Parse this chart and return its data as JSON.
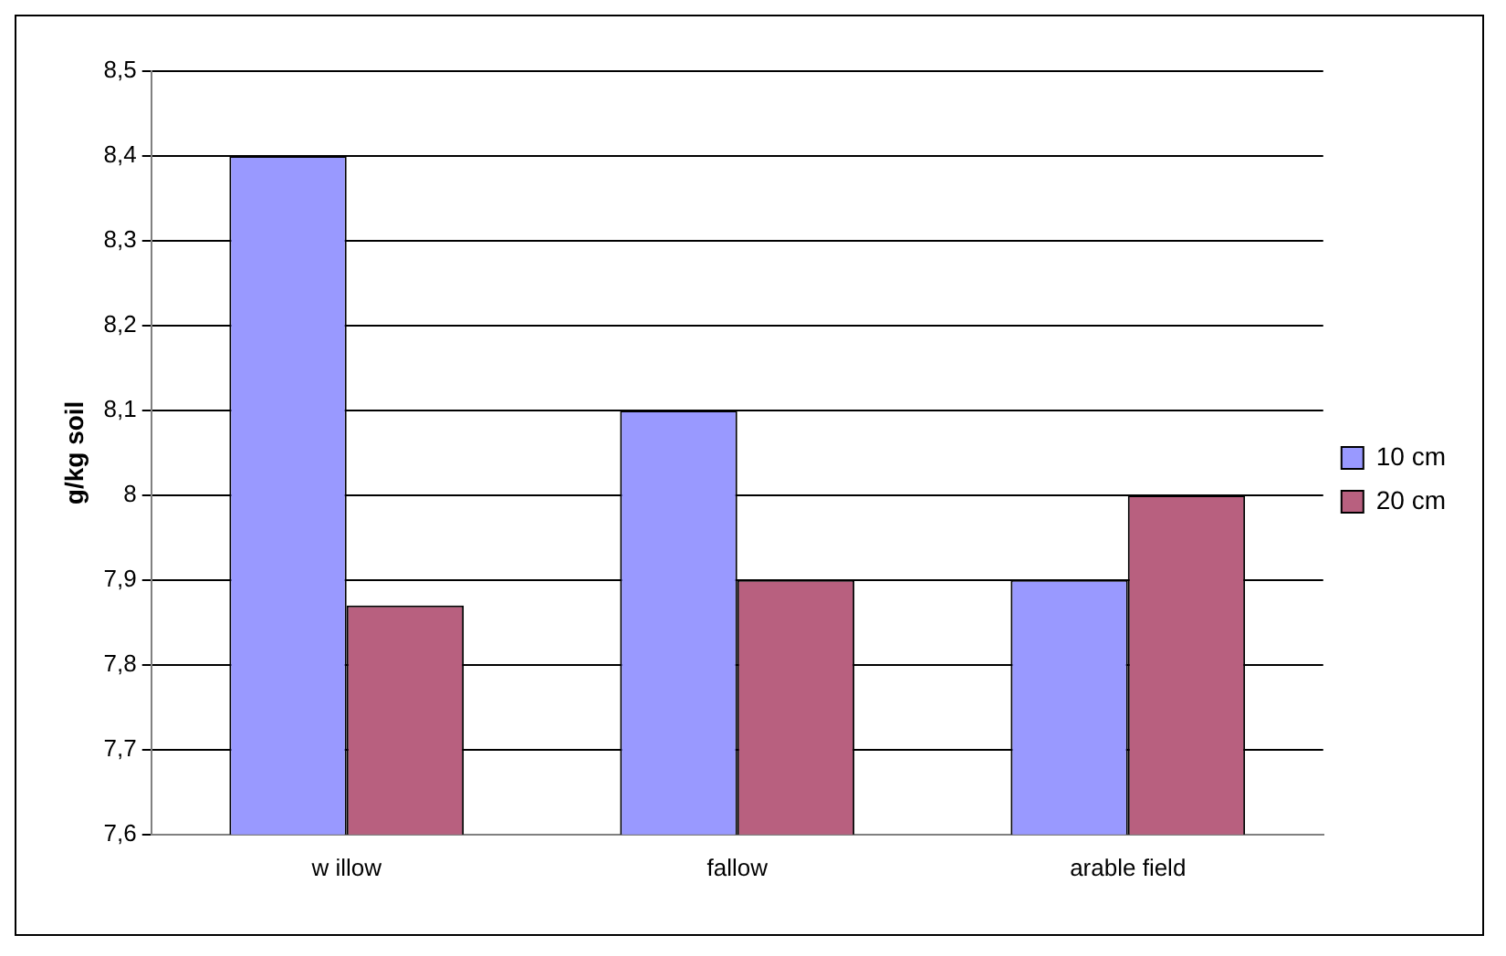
{
  "chart_data": {
    "type": "bar",
    "ylabel": "g/kg soil",
    "categories": [
      "w illow",
      "fallow",
      "arable field"
    ],
    "series": [
      {
        "name": "10 cm",
        "color": "#9999ff",
        "values": [
          8.4,
          8.1,
          7.9
        ]
      },
      {
        "name": "20 cm",
        "color": "#b8607f",
        "values": [
          7.87,
          7.9,
          8.0
        ]
      }
    ],
    "ylim": [
      7.6,
      8.5
    ],
    "yticks": [
      {
        "value": 7.6,
        "label": "7,6"
      },
      {
        "value": 7.7,
        "label": "7,7"
      },
      {
        "value": 7.8,
        "label": "7,8"
      },
      {
        "value": 7.9,
        "label": "7,9"
      },
      {
        "value": 8,
        "label": "8"
      },
      {
        "value": 8.1,
        "label": "8,1"
      },
      {
        "value": 8.2,
        "label": "8,2"
      },
      {
        "value": 8.3,
        "label": "8,3"
      },
      {
        "value": 8.4,
        "label": "8,4"
      },
      {
        "value": 8.5,
        "label": "8,5"
      }
    ],
    "grid": "y",
    "legend": "right"
  }
}
